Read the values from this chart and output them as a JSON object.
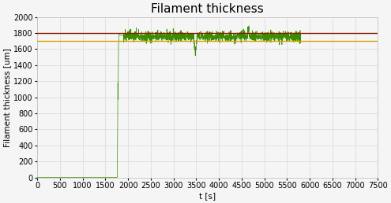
{
  "title": "Filament thickness",
  "xlabel": "t [s]",
  "ylabel": "Filament thickness [um]",
  "xlim": [
    0,
    7500
  ],
  "ylim": [
    0,
    2000
  ],
  "xticks": [
    0,
    500,
    1000,
    1500,
    2000,
    2500,
    3000,
    3500,
    4000,
    4500,
    5000,
    5500,
    6000,
    6500,
    7000,
    7500
  ],
  "yticks": [
    0,
    200,
    400,
    600,
    800,
    1000,
    1200,
    1400,
    1600,
    1800,
    2000
  ],
  "hline1_y": 1800,
  "hline1_color": "#8B2000",
  "hline2_y": 1700,
  "hline2_color": "#DAA000",
  "filament_color": "#3A8C00",
  "background_color": "#f5f5f5",
  "plot_bg_color": "#f5f5f5",
  "grid_color": "#d8d8d8",
  "title_fontsize": 11,
  "label_fontsize": 7.5,
  "tick_fontsize": 7
}
